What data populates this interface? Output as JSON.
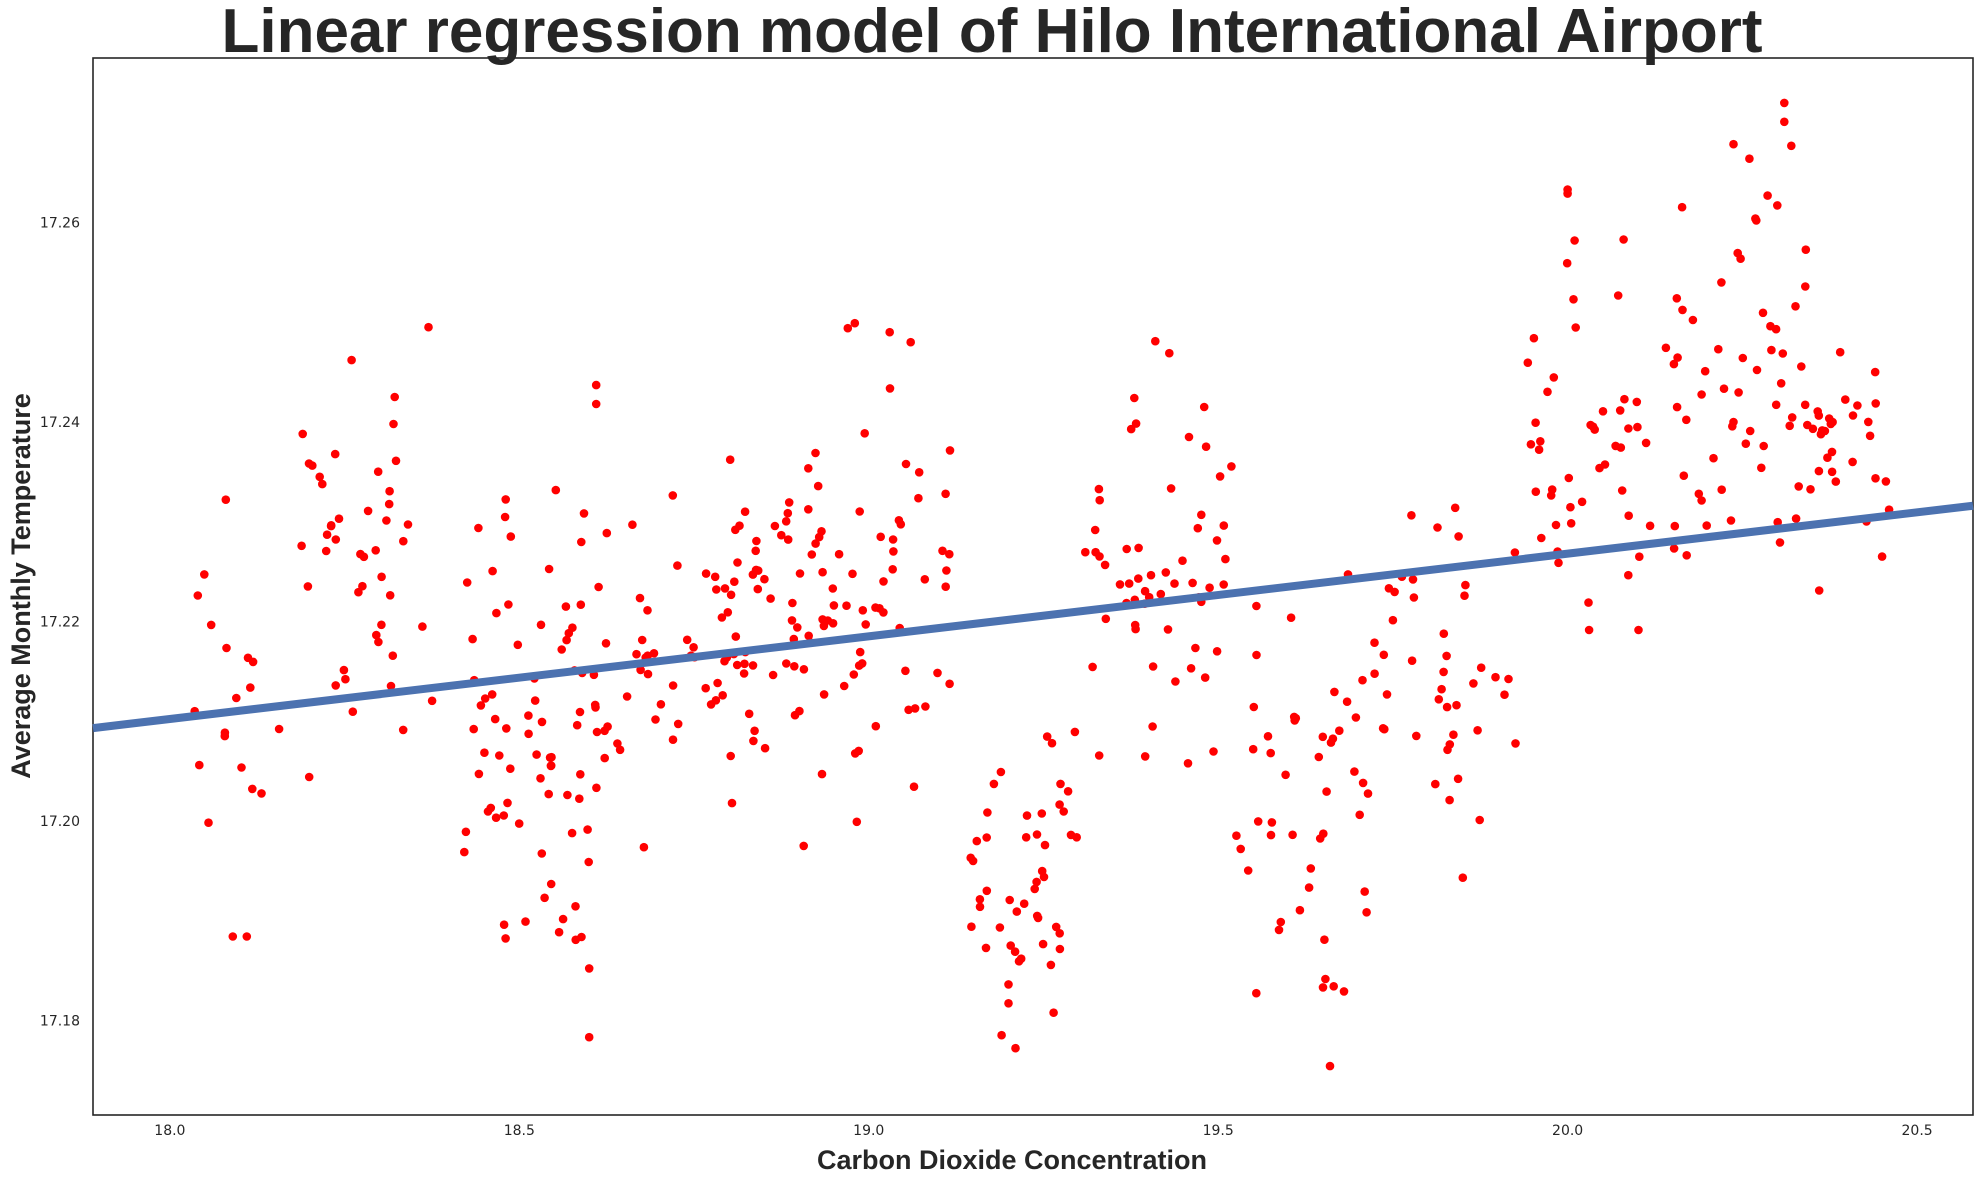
{
  "chart_data": {
    "type": "scatter",
    "title": "Linear regression model of Hilo International Airport",
    "xlabel": "Carbon Dioxide Concentration",
    "ylabel": "Average Monthly Temperature",
    "xlim": [
      17.89,
      20.58
    ],
    "ylim": [
      17.1705,
      17.2765
    ],
    "xticks": [
      "18.0",
      "18.5",
      "19.0",
      "19.5",
      "20.0",
      "20.5"
    ],
    "yticks": [
      "17.18",
      "17.20",
      "17.22",
      "17.24",
      "17.26"
    ],
    "grid": false,
    "legend": "none",
    "colors": {
      "points": "#ff0000",
      "regression_line": "#4c72b0",
      "axes": "#262626"
    },
    "regression_line": {
      "x": [
        17.89,
        20.58
      ],
      "y": [
        17.2093,
        17.2316
      ]
    },
    "clusters": [
      {
        "xmin": 18.02,
        "xmax": 18.16,
        "ymin": 17.188,
        "ymax": 17.232,
        "n": 16
      },
      {
        "xmin": 18.18,
        "xmax": 18.38,
        "ymin": 17.198,
        "ymax": 17.249,
        "n": 42
      },
      {
        "xmin": 18.42,
        "xmax": 18.63,
        "ymin": 17.178,
        "ymax": 17.243,
        "n": 85
      },
      {
        "xmin": 18.64,
        "xmax": 18.8,
        "ymin": 17.193,
        "ymax": 17.237,
        "n": 38
      },
      {
        "xmin": 18.8,
        "xmax": 19.0,
        "ymin": 17.193,
        "ymax": 17.249,
        "n": 80
      },
      {
        "xmin": 19.0,
        "xmax": 19.12,
        "ymin": 17.2,
        "ymax": 17.249,
        "n": 30
      },
      {
        "xmin": 19.14,
        "xmax": 19.3,
        "ymin": 17.177,
        "ymax": 17.216,
        "n": 46
      },
      {
        "xmin": 19.3,
        "xmax": 19.52,
        "ymin": 17.2,
        "ymax": 17.248,
        "n": 55
      },
      {
        "xmin": 19.52,
        "xmax": 19.72,
        "ymin": 17.175,
        "ymax": 17.231,
        "n": 45
      },
      {
        "xmin": 19.72,
        "xmax": 19.93,
        "ymin": 17.194,
        "ymax": 17.236,
        "n": 42
      },
      {
        "xmin": 19.93,
        "xmax": 20.12,
        "ymin": 17.212,
        "ymax": 17.263,
        "n": 45
      },
      {
        "xmin": 20.14,
        "xmax": 20.35,
        "ymin": 17.212,
        "ymax": 17.272,
        "n": 58
      },
      {
        "xmin": 20.35,
        "xmax": 20.46,
        "ymin": 17.226,
        "ymax": 17.247,
        "n": 24
      }
    ],
    "points": [
      [
        18.37,
        17.2495
      ],
      [
        18.26,
        17.2462
      ],
      [
        18.32,
        17.2398
      ],
      [
        18.19,
        17.2388
      ],
      [
        18.08,
        17.2322
      ],
      [
        18.04,
        17.2226
      ],
      [
        18.11,
        17.1884
      ],
      [
        18.09,
        17.1884
      ],
      [
        18.61,
        17.2437
      ],
      [
        18.61,
        17.2418
      ],
      [
        18.6,
        17.1783
      ],
      [
        18.6,
        17.1852
      ],
      [
        18.98,
        17.2499
      ],
      [
        18.97,
        17.2494
      ],
      [
        19.03,
        17.249
      ],
      [
        19.06,
        17.248
      ],
      [
        19.21,
        17.1772
      ],
      [
        19.19,
        17.1785
      ],
      [
        19.2,
        17.1817
      ],
      [
        19.2,
        17.1836
      ],
      [
        19.41,
        17.2481
      ],
      [
        19.43,
        17.2469
      ],
      [
        19.38,
        17.2424
      ],
      [
        19.48,
        17.2415
      ],
      [
        19.66,
        17.1754
      ],
      [
        19.65,
        17.1833
      ],
      [
        19.68,
        17.1829
      ],
      [
        19.63,
        17.1933
      ],
      [
        20.0,
        17.2633
      ],
      [
        20.0,
        17.2629
      ],
      [
        20.01,
        17.2582
      ],
      [
        20.08,
        17.2583
      ],
      [
        20.31,
        17.272
      ],
      [
        20.31,
        17.2701
      ],
      [
        20.32,
        17.2677
      ],
      [
        20.26,
        17.2664
      ],
      [
        20.27,
        17.2602
      ],
      [
        20.22,
        17.254
      ],
      [
        20.39,
        17.247
      ],
      [
        20.44,
        17.245
      ],
      [
        20.46,
        17.2312
      ],
      [
        20.45,
        17.2265
      ],
      [
        20.36,
        17.2231
      ],
      [
        19.85,
        17.1943
      ]
    ]
  }
}
